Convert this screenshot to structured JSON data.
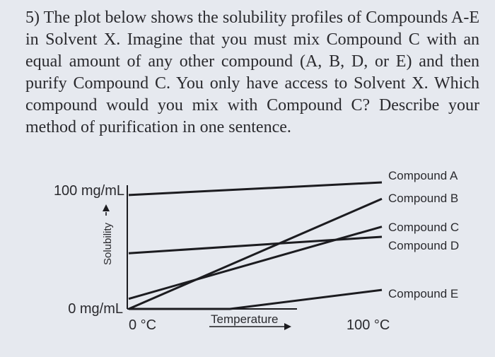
{
  "question": {
    "text": "5) The plot below shows the solubility profiles of Compounds A-E in Solvent X. Imagine that you must mix Compound C with an equal amount of any other compound (A, B, D, or E) and then purify Compound C. You only have access to Solvent X. Which compound would you mix with Compound C? Describe your method of purification in one sentence."
  },
  "colors": {
    "background": "#e6e9ef",
    "ink": "#2a2a2e",
    "line": "#1c1c20"
  },
  "chart_data": {
    "type": "line",
    "title": "",
    "xlabel": "Temperature",
    "ylabel": "Solubility",
    "x_tick_labels": [
      "0 °C",
      "100 °C"
    ],
    "y_tick_labels": [
      "0 mg/mL",
      "100 mg/mL"
    ],
    "xlim": [
      0,
      100
    ],
    "ylim": [
      0,
      100
    ],
    "grid": false,
    "legend": "line-end labels on right",
    "series": [
      {
        "name": "Compound A",
        "x": [
          0,
          100
        ],
        "y": [
          90,
          100
        ]
      },
      {
        "name": "Compound B",
        "x": [
          0,
          100
        ],
        "y": [
          0,
          87
        ]
      },
      {
        "name": "Compound C",
        "x": [
          0,
          100
        ],
        "y": [
          8,
          65
        ]
      },
      {
        "name": "Compound D",
        "x": [
          0,
          100
        ],
        "y": [
          44,
          57
        ]
      },
      {
        "name": "Compound E",
        "x": [
          0,
          40,
          100
        ],
        "y": [
          0,
          0,
          15
        ]
      }
    ]
  }
}
